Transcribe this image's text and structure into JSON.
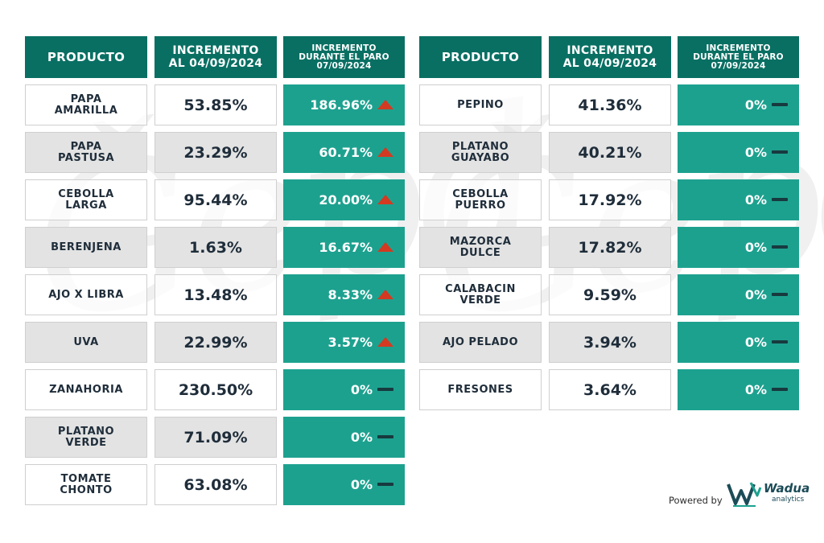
{
  "headers": {
    "product": "PRODUCTO",
    "increment_line1": "INCREMENTO",
    "increment_line2": "AL 04/09/2024",
    "during_line1": "INCREMENTO",
    "during_line2": "DURANTE EL PARO",
    "during_line3": "07/09/2024"
  },
  "colors": {
    "header_bg": "#096f63",
    "change_bg": "#1da18f",
    "up_arrow": "#d33a21",
    "flat_dash": "#173a3e",
    "shaded_row": "#e3e3e3"
  },
  "chart_data": [
    {
      "type": "table",
      "columns": [
        "PRODUCTO",
        "INCREMENTO AL 04/09/2024",
        "INCREMENTO DURANTE EL PARO 07/09/2024"
      ],
      "rows": [
        {
          "product_line1": "PAPA",
          "product_line2": "AMARILLA",
          "increment": "53.85%",
          "during": "186.96%",
          "trend": "up"
        },
        {
          "product_line1": "PAPA",
          "product_line2": "PASTUSA",
          "increment": "23.29%",
          "during": "60.71%",
          "trend": "up"
        },
        {
          "product_line1": "CEBOLLA",
          "product_line2": "LARGA",
          "increment": "95.44%",
          "during": "20.00%",
          "trend": "up"
        },
        {
          "product_line1": "BERENJENA",
          "product_line2": "",
          "increment": "1.63%",
          "during": "16.67%",
          "trend": "up"
        },
        {
          "product_line1": "AJO X LIBRA",
          "product_line2": "",
          "increment": "13.48%",
          "during": "8.33%",
          "trend": "up"
        },
        {
          "product_line1": "UVA",
          "product_line2": "",
          "increment": "22.99%",
          "during": "3.57%",
          "trend": "up"
        },
        {
          "product_line1": "ZANAHORIA",
          "product_line2": "",
          "increment": "230.50%",
          "during": "0%",
          "trend": "flat"
        },
        {
          "product_line1": "PLATANO",
          "product_line2": "VERDE",
          "increment": "71.09%",
          "during": "0%",
          "trend": "flat"
        },
        {
          "product_line1": "TOMATE",
          "product_line2": "CHONTO",
          "increment": "63.08%",
          "during": "0%",
          "trend": "flat"
        }
      ]
    },
    {
      "type": "table",
      "columns": [
        "PRODUCTO",
        "INCREMENTO AL 04/09/2024",
        "INCREMENTO DURANTE EL PARO 07/09/2024"
      ],
      "rows": [
        {
          "product_line1": "PEPINO",
          "product_line2": "",
          "increment": "41.36%",
          "during": "0%",
          "trend": "flat"
        },
        {
          "product_line1": "PLATANO",
          "product_line2": "GUAYABO",
          "increment": "40.21%",
          "during": "0%",
          "trend": "flat"
        },
        {
          "product_line1": "CEBOLLA",
          "product_line2": "PUERRO",
          "increment": "17.92%",
          "during": "0%",
          "trend": "flat"
        },
        {
          "product_line1": "MAZORCA",
          "product_line2": "DULCE",
          "increment": "17.82%",
          "during": "0%",
          "trend": "flat"
        },
        {
          "product_line1": "CALABACIN",
          "product_line2": "VERDE",
          "increment": "9.59%",
          "during": "0%",
          "trend": "flat"
        },
        {
          "product_line1": "AJO PELADO",
          "product_line2": "",
          "increment": "3.94%",
          "during": "0%",
          "trend": "flat"
        },
        {
          "product_line1": "FRESONES",
          "product_line2": "",
          "increment": "3.64%",
          "during": "0%",
          "trend": "flat"
        }
      ]
    }
  ],
  "footer": {
    "powered_by": "Powered by",
    "brand": "Wadua",
    "brand_sub": "analytics"
  }
}
